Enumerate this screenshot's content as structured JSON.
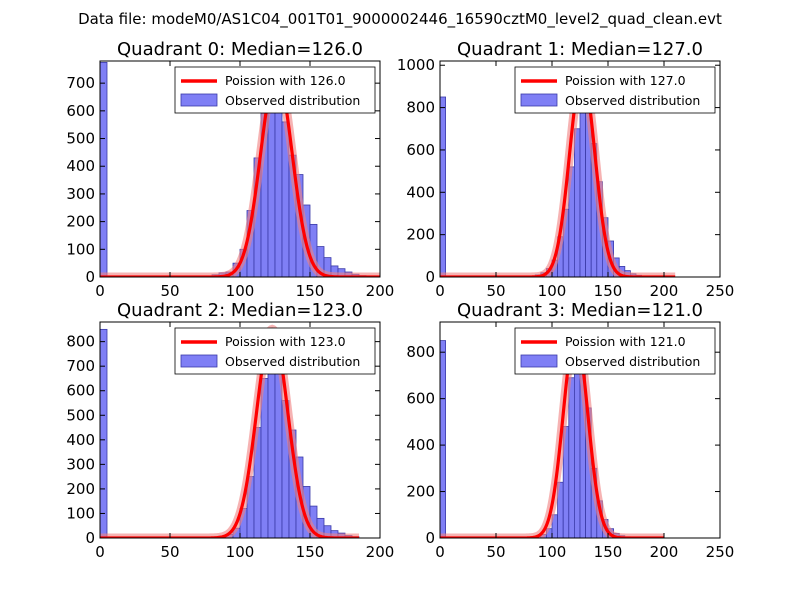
{
  "suptitle": "Data file: modeM0/AS1C04_001T01_9000002446_16590cztM0_level2_quad_clean.evt",
  "colors": {
    "bar_fill": "#7f7ff5",
    "bar_edge": "#3a3aa8",
    "curve": "#ff0000",
    "curve_halo": "#f08080"
  },
  "chart_data": [
    {
      "type": "bar",
      "title": "Quadrant 0: Median=126.0",
      "xlim": [
        0,
        200
      ],
      "ylim": [
        0,
        780
      ],
      "xticks": [
        0,
        50,
        100,
        150,
        200
      ],
      "yticks": [
        0,
        100,
        200,
        300,
        400,
        500,
        600,
        700
      ],
      "bin_width": 5,
      "bins": [
        [
          0,
          775
        ],
        [
          80,
          8
        ],
        [
          85,
          15
        ],
        [
          90,
          18
        ],
        [
          95,
          50
        ],
        [
          100,
          100
        ],
        [
          105,
          240
        ],
        [
          110,
          430
        ],
        [
          115,
          590
        ],
        [
          120,
          720
        ],
        [
          125,
          630
        ],
        [
          130,
          560
        ],
        [
          135,
          440
        ],
        [
          140,
          370
        ],
        [
          145,
          260
        ],
        [
          150,
          190
        ],
        [
          155,
          110
        ],
        [
          160,
          70
        ],
        [
          165,
          40
        ],
        [
          170,
          30
        ],
        [
          175,
          18
        ],
        [
          180,
          10
        ],
        [
          185,
          5
        ]
      ],
      "poisson": {
        "mu": 126,
        "peak": 740,
        "sigma": 11.2,
        "xrange": [
          0,
          200
        ]
      },
      "legend": {
        "line": "Poission with 126.0",
        "bars": "Observed distribution"
      }
    },
    {
      "type": "bar",
      "title": "Quadrant 1: Median=127.0",
      "xlim": [
        0,
        250
      ],
      "ylim": [
        0,
        1020
      ],
      "xticks": [
        0,
        50,
        100,
        150,
        200,
        250
      ],
      "yticks": [
        0,
        200,
        400,
        600,
        800,
        1000
      ],
      "bin_width": 5,
      "bins": [
        [
          0,
          850
        ],
        [
          85,
          10
        ],
        [
          90,
          20
        ],
        [
          95,
          40
        ],
        [
          100,
          80
        ],
        [
          105,
          190
        ],
        [
          110,
          320
        ],
        [
          115,
          520
        ],
        [
          120,
          700
        ],
        [
          125,
          920
        ],
        [
          130,
          880
        ],
        [
          135,
          630
        ],
        [
          140,
          450
        ],
        [
          145,
          280
        ],
        [
          150,
          170
        ],
        [
          155,
          90
        ],
        [
          160,
          50
        ],
        [
          165,
          30
        ],
        [
          170,
          15
        ],
        [
          175,
          8
        ],
        [
          180,
          5
        ],
        [
          185,
          3
        ]
      ],
      "poisson": {
        "mu": 127,
        "peak": 960,
        "sigma": 11.3,
        "xrange": [
          0,
          210
        ]
      },
      "legend": {
        "line": "Poission with 127.0",
        "bars": "Observed distribution"
      }
    },
    {
      "type": "bar",
      "title": "Quadrant 2: Median=123.0",
      "xlim": [
        0,
        200
      ],
      "ylim": [
        0,
        880
      ],
      "xticks": [
        0,
        50,
        100,
        150,
        200
      ],
      "yticks": [
        0,
        100,
        200,
        300,
        400,
        500,
        600,
        700,
        800
      ],
      "bin_width": 5,
      "bins": [
        [
          0,
          850
        ],
        [
          85,
          8
        ],
        [
          90,
          15
        ],
        [
          95,
          40
        ],
        [
          100,
          120
        ],
        [
          105,
          250
        ],
        [
          110,
          450
        ],
        [
          115,
          650
        ],
        [
          120,
          820
        ],
        [
          125,
          760
        ],
        [
          130,
          560
        ],
        [
          135,
          440
        ],
        [
          140,
          330
        ],
        [
          145,
          210
        ],
        [
          150,
          130
        ],
        [
          155,
          80
        ],
        [
          160,
          50
        ],
        [
          165,
          30
        ],
        [
          170,
          20
        ],
        [
          175,
          10
        ],
        [
          180,
          5
        ]
      ],
      "poisson": {
        "mu": 123,
        "peak": 850,
        "sigma": 11.1,
        "xrange": [
          0,
          185
        ]
      },
      "legend": {
        "line": "Poission with 123.0",
        "bars": "Observed distribution"
      }
    },
    {
      "type": "bar",
      "title": "Quadrant 3: Median=121.0",
      "xlim": [
        0,
        250
      ],
      "ylim": [
        0,
        930
      ],
      "xticks": [
        0,
        50,
        100,
        150,
        200,
        250
      ],
      "yticks": [
        0,
        200,
        400,
        600,
        800
      ],
      "bin_width": 5,
      "bins": [
        [
          0,
          850
        ],
        [
          85,
          8
        ],
        [
          90,
          15
        ],
        [
          95,
          40
        ],
        [
          100,
          100
        ],
        [
          105,
          240
        ],
        [
          110,
          480
        ],
        [
          115,
          690
        ],
        [
          120,
          870
        ],
        [
          125,
          800
        ],
        [
          130,
          560
        ],
        [
          135,
          300
        ],
        [
          140,
          160
        ],
        [
          145,
          80
        ],
        [
          150,
          40
        ],
        [
          155,
          20
        ],
        [
          160,
          10
        ],
        [
          165,
          5
        ]
      ],
      "poisson": {
        "mu": 121,
        "peak": 880,
        "sigma": 11.0,
        "xrange": [
          0,
          200
        ]
      },
      "legend": {
        "line": "Poission with 121.0",
        "bars": "Observed distribution"
      }
    }
  ]
}
